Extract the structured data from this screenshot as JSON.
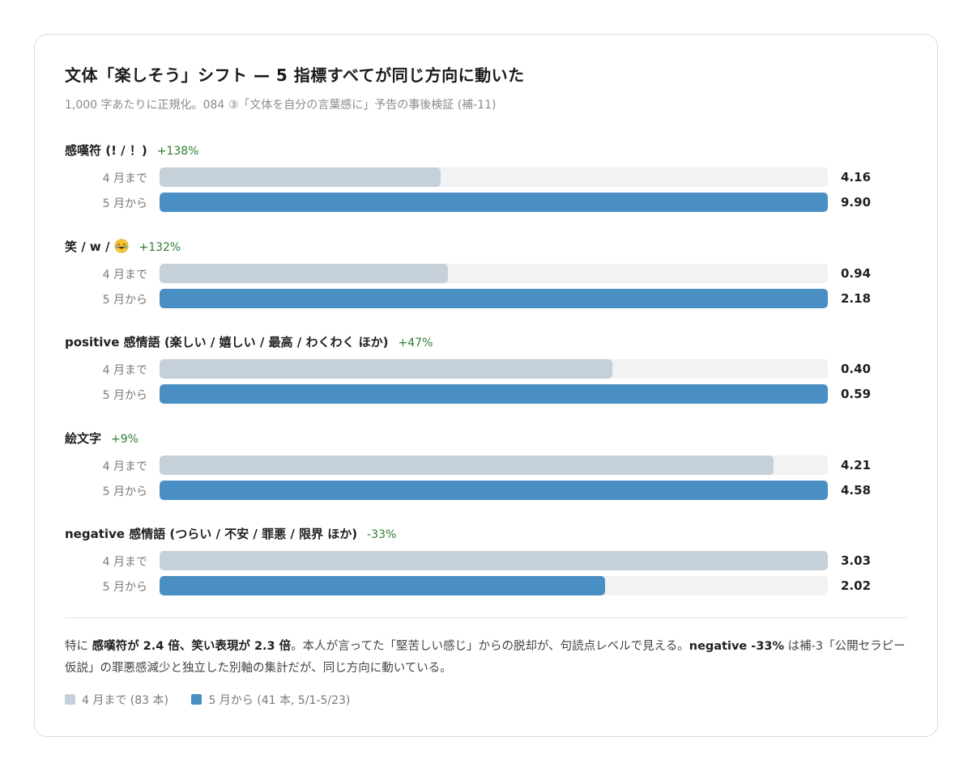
{
  "title": "文体「楽しそう」シフト — 5 指標すべてが同じ方向に動いた",
  "subtitle": "1,000 字あたりに正規化。084 ③「文体を自分の言葉感に」予告の事後検証 (補-11)",
  "colors": {
    "before": "#c6d0d9",
    "after": "#4a8fc3",
    "track": "#f1f2f4",
    "change": "#2e7d32"
  },
  "chart_data": {
    "type": "bar",
    "orientation": "horizontal",
    "series_labels": [
      "4 月まで",
      "5 月から"
    ],
    "groups": [
      {
        "label": "感嘆符 (! / ！)",
        "change": "+138%",
        "before": 4.16,
        "after": 9.9,
        "before_label": "4.16",
        "after_label": "9.90"
      },
      {
        "label": "笑 / w /",
        "label_icon": "rolling-on-floor-laughing-emoji",
        "change": "+132%",
        "before": 0.94,
        "after": 2.18,
        "before_label": "0.94",
        "after_label": "2.18"
      },
      {
        "label": "positive 感情語 (楽しい / 嬉しい / 最高 / わくわく ほか)",
        "change": "+47%",
        "before": 0.4,
        "after": 0.59,
        "before_label": "0.40",
        "after_label": "0.59"
      },
      {
        "label": "絵文字",
        "change": "+9%",
        "before": 4.21,
        "after": 4.58,
        "before_label": "4.21",
        "after_label": "4.58"
      },
      {
        "label": "negative 感情語 (つらい / 不安 / 罪悪 / 限界 ほか)",
        "change": "-33%",
        "before": 3.03,
        "after": 2.02,
        "before_label": "3.03",
        "after_label": "2.02"
      }
    ],
    "scale": "each group normalized to its larger value"
  },
  "note": {
    "p1": "特に ",
    "b1": "感嘆符が 2.4 倍、笑い表現が 2.3 倍",
    "p2": "。本人が言ってた「堅苦しい感じ」からの脱却が、句読点レベルで見える。",
    "b2": "negative -33%",
    "p3": " は補-3「公開セラピー仮説」の罪悪感減少と独立した別軸の集計だが、同じ方向に動いている。"
  },
  "legend": {
    "before": "4 月まで (83 本)",
    "after": "5 月から (41 本, 5/1-5/23)"
  }
}
